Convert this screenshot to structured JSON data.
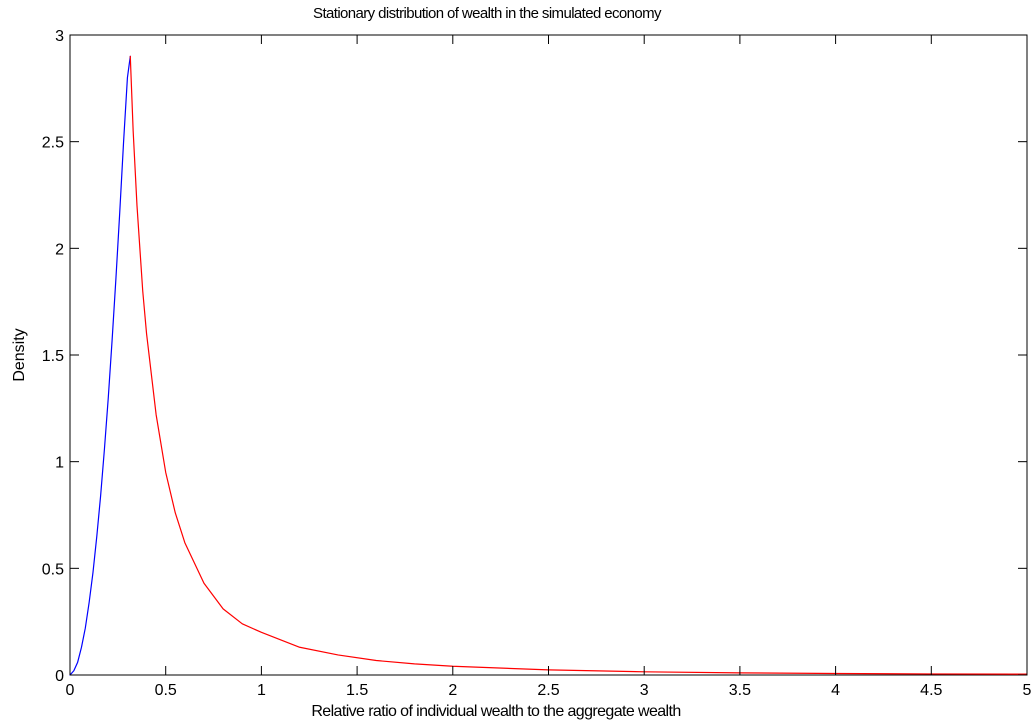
{
  "chart_data": {
    "type": "line",
    "title": "Stationary distribution of wealth in the simulated economy",
    "xlabel": "Relative ratio of individual wealth to the aggregate wealth",
    "ylabel": "Density",
    "xlim": [
      0,
      5
    ],
    "ylim": [
      0,
      3
    ],
    "xticks": [
      0,
      0.5,
      1,
      1.5,
      2,
      2.5,
      3,
      3.5,
      4,
      4.5,
      5
    ],
    "xtick_labels": [
      "0",
      "0.5",
      "1",
      "1.5",
      "2",
      "2.5",
      "3",
      "3.5",
      "4",
      "4.5",
      "5"
    ],
    "yticks": [
      0,
      0.5,
      1,
      1.5,
      2,
      2.5,
      3
    ],
    "ytick_labels": [
      "0",
      "0.5",
      "1",
      "1.5",
      "2",
      "2.5",
      "3"
    ],
    "grid": false,
    "series": [
      {
        "color": "#0000ff",
        "x": [
          0,
          0.02,
          0.04,
          0.06,
          0.08,
          0.1,
          0.12,
          0.14,
          0.16,
          0.18,
          0.2,
          0.22,
          0.24,
          0.26,
          0.28,
          0.3,
          0.315
        ],
        "y": [
          0,
          0.02,
          0.06,
          0.13,
          0.22,
          0.34,
          0.48,
          0.65,
          0.84,
          1.06,
          1.3,
          1.57,
          1.86,
          2.17,
          2.5,
          2.8,
          2.9
        ]
      },
      {
        "color": "#ff0000",
        "x": [
          0.315,
          0.33,
          0.35,
          0.38,
          0.4,
          0.45,
          0.5,
          0.55,
          0.6,
          0.7,
          0.8,
          0.9,
          1.0,
          1.2,
          1.4,
          1.6,
          1.8,
          2.0,
          2.5,
          3.0,
          3.5,
          4.0,
          4.5,
          5.0
        ],
        "y": [
          2.9,
          2.55,
          2.2,
          1.8,
          1.6,
          1.22,
          0.95,
          0.76,
          0.62,
          0.43,
          0.31,
          0.24,
          0.2,
          0.13,
          0.094,
          0.068,
          0.052,
          0.041,
          0.024,
          0.015,
          0.01,
          0.007,
          0.005,
          0.004
        ]
      }
    ]
  }
}
